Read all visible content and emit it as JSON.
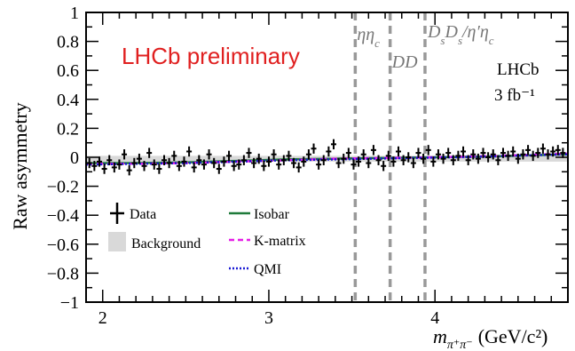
{
  "chart_data": {
    "type": "scatter",
    "ylabel": "Raw asymmetry",
    "xlabel": "m",
    "xlabel_sub": "π⁺π⁻",
    "xlabel_unit": "(GeV/c²)",
    "xlim": [
      1.9,
      4.8
    ],
    "ylim": [
      -1,
      1
    ],
    "x_ticks": [
      "2",
      "3",
      "4"
    ],
    "y_ticks": [
      "1",
      "0.8",
      "0.6",
      "0.4",
      "0.2",
      "0",
      "−0.2",
      "−0.4",
      "−0.6",
      "−0.8",
      "−1"
    ],
    "grid": false,
    "watermark": "LHCb preliminary",
    "experiment_label": "LHCb",
    "luminosity_label": "3 fb⁻¹",
    "vertical_lines": [
      {
        "x": 3.52,
        "label": "ηη_c"
      },
      {
        "x": 3.73,
        "label": "DD"
      },
      {
        "x": 3.94,
        "label": "D_sD_s/η′η_c"
      }
    ],
    "legend": {
      "placement": "bottom-left",
      "entries": [
        {
          "label": "Data",
          "kind": "marker"
        },
        {
          "label": "Background",
          "kind": "box"
        },
        {
          "label": "Isobar",
          "kind": "solid",
          "color": "#1f7a3a"
        },
        {
          "label": "K-matrix",
          "kind": "dashed",
          "color": "#e61ee6"
        },
        {
          "label": "QMI",
          "kind": "dotted",
          "color": "#1a1ad4"
        }
      ]
    },
    "colors": {
      "data": "#000000",
      "background": "#d9d9d9",
      "isobar": "#1f7a3a",
      "kmatrix": "#e61ee6",
      "qmi": "#1a1ad4",
      "vline": "#999999",
      "watermark": "#e02020"
    },
    "series": [
      {
        "name": "Data",
        "x": [
          1.92,
          1.95,
          1.98,
          2.01,
          2.04,
          2.07,
          2.1,
          2.13,
          2.16,
          2.19,
          2.22,
          2.25,
          2.28,
          2.31,
          2.34,
          2.37,
          2.4,
          2.43,
          2.46,
          2.49,
          2.52,
          2.55,
          2.58,
          2.61,
          2.64,
          2.67,
          2.7,
          2.73,
          2.76,
          2.79,
          2.82,
          2.85,
          2.88,
          2.91,
          2.94,
          2.97,
          3.0,
          3.03,
          3.06,
          3.09,
          3.12,
          3.15,
          3.18,
          3.21,
          3.24,
          3.27,
          3.3,
          3.33,
          3.36,
          3.39,
          3.42,
          3.45,
          3.48,
          3.51,
          3.54,
          3.57,
          3.6,
          3.63,
          3.66,
          3.69,
          3.72,
          3.75,
          3.78,
          3.81,
          3.84,
          3.87,
          3.9,
          3.93,
          3.96,
          3.99,
          4.02,
          4.05,
          4.08,
          4.11,
          4.14,
          4.17,
          4.2,
          4.23,
          4.26,
          4.29,
          4.32,
          4.35,
          4.38,
          4.41,
          4.44,
          4.47,
          4.5,
          4.53,
          4.56,
          4.59,
          4.62,
          4.65,
          4.68,
          4.71,
          4.74,
          4.77
        ],
        "y": [
          -0.04,
          -0.06,
          -0.03,
          -0.08,
          -0.02,
          -0.07,
          -0.05,
          0.02,
          -0.09,
          -0.04,
          -0.01,
          -0.06,
          0.03,
          -0.05,
          -0.08,
          -0.02,
          -0.04,
          0.01,
          -0.06,
          -0.03,
          0.04,
          -0.07,
          -0.02,
          -0.05,
          0.02,
          -0.04,
          -0.08,
          -0.03,
          0.01,
          -0.06,
          -0.05,
          -0.02,
          0.03,
          -0.04,
          -0.01,
          -0.06,
          -0.03,
          0.02,
          -0.05,
          -0.02,
          0.01,
          -0.04,
          -0.07,
          -0.03,
          0.02,
          0.06,
          -0.05,
          -0.02,
          0.04,
          0.09,
          -0.04,
          -0.01,
          0.03,
          -0.05,
          -0.03,
          0.02,
          -0.04,
          0.05,
          -0.02,
          -0.06,
          0.01,
          -0.03,
          0.04,
          -0.02,
          0.0,
          -0.04,
          0.03,
          -0.01,
          0.05,
          -0.03,
          0.02,
          -0.01,
          0.03,
          -0.02,
          0.01,
          0.04,
          -0.02,
          0.02,
          -0.01,
          0.03,
          0.0,
          0.02,
          -0.02,
          0.03,
          0.01,
          0.04,
          -0.01,
          0.02,
          0.05,
          0.01,
          0.03,
          0.06,
          0.02,
          0.04,
          0.05,
          0.03
        ],
        "yerr": [
          0.035,
          0.035,
          0.035,
          0.035,
          0.035,
          0.035,
          0.035,
          0.035,
          0.035,
          0.035,
          0.035,
          0.035,
          0.035,
          0.035,
          0.035,
          0.035,
          0.035,
          0.035,
          0.035,
          0.035,
          0.035,
          0.035,
          0.035,
          0.035,
          0.035,
          0.035,
          0.035,
          0.035,
          0.035,
          0.035,
          0.035,
          0.035,
          0.035,
          0.035,
          0.035,
          0.035,
          0.035,
          0.035,
          0.035,
          0.035,
          0.035,
          0.035,
          0.035,
          0.035,
          0.035,
          0.035,
          0.035,
          0.035,
          0.035,
          0.035,
          0.035,
          0.035,
          0.035,
          0.035,
          0.035,
          0.035,
          0.035,
          0.035,
          0.035,
          0.035,
          0.035,
          0.035,
          0.035,
          0.035,
          0.035,
          0.035,
          0.035,
          0.035,
          0.035,
          0.035,
          0.035,
          0.035,
          0.035,
          0.035,
          0.035,
          0.035,
          0.035,
          0.035,
          0.035,
          0.035,
          0.035,
          0.035,
          0.035,
          0.035,
          0.035,
          0.035,
          0.035,
          0.035,
          0.035,
          0.035,
          0.035,
          0.035,
          0.035,
          0.035,
          0.035,
          0.035
        ]
      },
      {
        "name": "Isobar",
        "x": [
          1.9,
          2.2,
          2.5,
          2.8,
          3.1,
          3.4,
          3.7,
          4.0,
          4.3,
          4.6,
          4.8
        ],
        "y": [
          -0.04,
          -0.04,
          -0.035,
          -0.025,
          -0.015,
          -0.01,
          -0.005,
          0.0,
          0.005,
          0.015,
          0.02
        ]
      },
      {
        "name": "K-matrix",
        "x": [
          1.9,
          2.2,
          2.5,
          2.8,
          3.1,
          3.4,
          3.7,
          4.0,
          4.3,
          4.6,
          4.8
        ],
        "y": [
          -0.045,
          -0.045,
          -0.04,
          -0.03,
          -0.02,
          -0.01,
          -0.005,
          0.0,
          0.008,
          0.018,
          0.025
        ]
      },
      {
        "name": "QMI",
        "x": [
          1.9,
          2.2,
          2.5,
          2.8,
          3.1,
          3.4,
          3.7,
          4.0,
          4.3,
          4.6,
          4.8
        ],
        "y": [
          -0.05,
          -0.045,
          -0.04,
          -0.03,
          -0.02,
          -0.015,
          -0.008,
          -0.002,
          0.005,
          0.015,
          0.02
        ]
      }
    ]
  }
}
